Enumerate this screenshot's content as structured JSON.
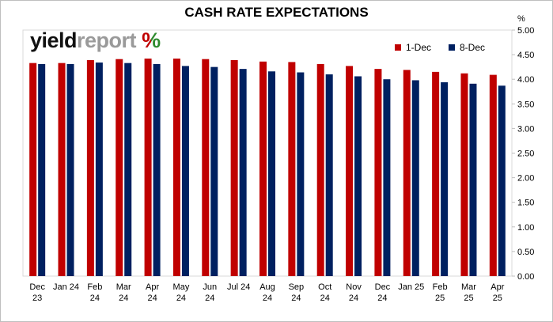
{
  "chart_data": {
    "type": "bar",
    "title": "CASH RATE EXPECTATIONS",
    "ylabel": "%",
    "ylim": [
      0,
      5
    ],
    "yticks": [
      "0.00",
      "0.50",
      "1.00",
      "1.50",
      "2.00",
      "2.50",
      "3.00",
      "3.50",
      "4.00",
      "4.50",
      "5.00"
    ],
    "grid": false,
    "legend_position": "top-right",
    "categories": [
      [
        "Dec",
        "23"
      ],
      [
        "Jan 24"
      ],
      [
        "Feb",
        "24"
      ],
      [
        "Mar",
        "24"
      ],
      [
        "Apr",
        "24"
      ],
      [
        "May",
        "24"
      ],
      [
        "Jun",
        "24"
      ],
      [
        "Jul 24"
      ],
      [
        "Aug",
        "24"
      ],
      [
        "Sep",
        "24"
      ],
      [
        "Oct",
        "24"
      ],
      [
        "Nov",
        "24"
      ],
      [
        "Dec",
        "24"
      ],
      [
        "Jan 25"
      ],
      [
        "Feb",
        "25"
      ],
      [
        "Mar",
        "25"
      ],
      [
        "Apr",
        "25"
      ]
    ],
    "series": [
      {
        "name": "1-Dec",
        "color": "#c00000",
        "values": [
          4.33,
          4.33,
          4.39,
          4.41,
          4.42,
          4.42,
          4.41,
          4.39,
          4.36,
          4.35,
          4.31,
          4.27,
          4.21,
          4.19,
          4.15,
          4.12,
          4.09
        ]
      },
      {
        "name": "8-Dec",
        "color": "#002060",
        "values": [
          4.31,
          4.31,
          4.34,
          4.33,
          4.31,
          4.27,
          4.25,
          4.21,
          4.16,
          4.14,
          4.1,
          4.06,
          4.0,
          3.98,
          3.94,
          3.91,
          3.87
        ]
      }
    ]
  },
  "logo": {
    "part1": "yield",
    "part2": "report",
    "part3": "%",
    "pct_colors": [
      "#c00000",
      "#2e8b2e"
    ]
  },
  "legend": {
    "series1": "1-Dec",
    "series2": "8-Dec"
  }
}
